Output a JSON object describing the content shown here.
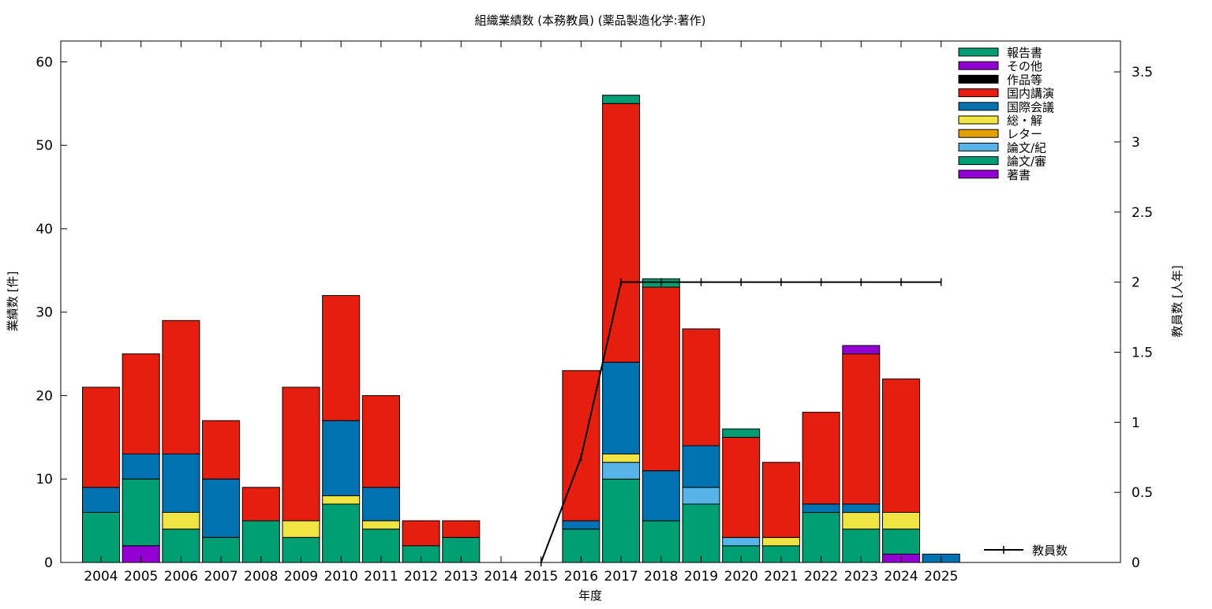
{
  "chart_data": {
    "type": "bar",
    "stacked": true,
    "title": "組織業績数 (本務教員) (薬品製造化学:著作)",
    "xlabel": "年度",
    "ylabel": "業績数 [件]",
    "y2label": "教員数 [人年]",
    "ylim": [
      0,
      62.5
    ],
    "y2lim": [
      0,
      3.72
    ],
    "yticks": [
      0,
      10,
      20,
      30,
      40,
      50,
      60
    ],
    "y2ticks": [
      0,
      0.5,
      1,
      1.5,
      2,
      2.5,
      3,
      3.5
    ],
    "y2ticklabels": [
      "0",
      "0.5",
      "1",
      "1.5",
      "2",
      "2.5",
      "3",
      "3.5"
    ],
    "categories": [
      "2004",
      "2005",
      "2006",
      "2007",
      "2008",
      "2009",
      "2010",
      "2011",
      "2012",
      "2013",
      "2014",
      "2015",
      "2016",
      "2017",
      "2018",
      "2019",
      "2020",
      "2021",
      "2022",
      "2023",
      "2024",
      "2025"
    ],
    "legend_position": "top-right",
    "series": [
      {
        "name": "著書",
        "color": "#9400d3",
        "values": [
          0,
          2,
          0,
          0,
          0,
          0,
          0,
          0,
          0,
          0,
          0,
          0,
          0,
          0,
          0,
          0,
          0,
          0,
          0,
          0,
          1,
          0
        ]
      },
      {
        "name": "論文/審",
        "color": "#009e73",
        "values": [
          6,
          8,
          4,
          3,
          5,
          3,
          7,
          4,
          2,
          3,
          0,
          0,
          4,
          10,
          5,
          7,
          2,
          2,
          6,
          4,
          3,
          0
        ]
      },
      {
        "name": "論文/紀",
        "color": "#56b4e9",
        "values": [
          0,
          0,
          0,
          0,
          0,
          0,
          0,
          0,
          0,
          0,
          0,
          0,
          0,
          2,
          0,
          2,
          1,
          0,
          0,
          0,
          0,
          0
        ]
      },
      {
        "name": "レター",
        "color": "#e69f00",
        "values": [
          0,
          0,
          0,
          0,
          0,
          0,
          0,
          0,
          0,
          0,
          0,
          0,
          0,
          0,
          0,
          0,
          0,
          0,
          0,
          0,
          0,
          0
        ]
      },
      {
        "name": "総・解",
        "color": "#f0e442",
        "values": [
          0,
          0,
          2,
          0,
          0,
          2,
          1,
          1,
          0,
          0,
          0,
          0,
          0,
          1,
          0,
          0,
          0,
          1,
          0,
          2,
          2,
          0
        ]
      },
      {
        "name": "国際会議",
        "color": "#0072b2",
        "values": [
          3,
          3,
          7,
          7,
          0,
          0,
          9,
          4,
          0,
          0,
          0,
          0,
          1,
          11,
          6,
          5,
          0,
          0,
          1,
          1,
          0,
          1
        ]
      },
      {
        "name": "国内講演",
        "color": "#e51e10",
        "values": [
          12,
          12,
          16,
          7,
          4,
          16,
          15,
          11,
          3,
          2,
          0,
          0,
          18,
          31,
          22,
          14,
          12,
          9,
          11,
          18,
          16,
          0
        ]
      },
      {
        "name": "作品等",
        "color": "#000000",
        "values": [
          0,
          0,
          0,
          0,
          0,
          0,
          0,
          0,
          0,
          0,
          0,
          0,
          0,
          0,
          0,
          0,
          0,
          0,
          0,
          0,
          0,
          0
        ]
      },
      {
        "name": "その他",
        "color": "#9400d3",
        "values": [
          0,
          0,
          0,
          0,
          0,
          0,
          0,
          0,
          0,
          0,
          0,
          0,
          0,
          0,
          0,
          0,
          0,
          0,
          0,
          1,
          0,
          0
        ]
      },
      {
        "name": "報告書",
        "color": "#009e73",
        "values": [
          0,
          0,
          0,
          0,
          0,
          0,
          0,
          0,
          0,
          0,
          0,
          0,
          0,
          1,
          1,
          0,
          1,
          0,
          0,
          0,
          0,
          0
        ]
      }
    ],
    "line_series": {
      "name": "教員数",
      "color": "#000000",
      "axis": "y2",
      "x": [
        "2015",
        "2016",
        "2017",
        "2018",
        "2019",
        "2020",
        "2021",
        "2022",
        "2023",
        "2024",
        "2025"
      ],
      "values": [
        0,
        0.75,
        2,
        2,
        2,
        2,
        2,
        2,
        2,
        2,
        2
      ]
    }
  }
}
